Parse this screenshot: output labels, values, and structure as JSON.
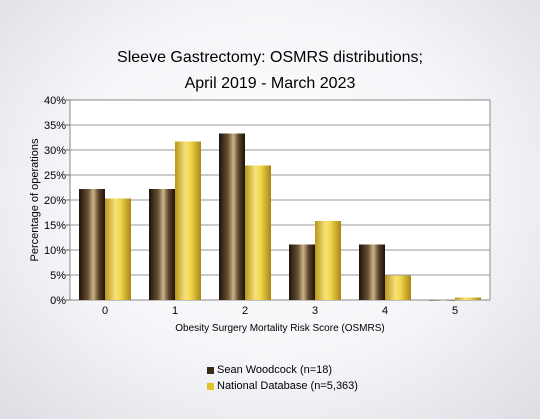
{
  "chart_data": {
    "type": "bar",
    "title": "Sleeve Gastrectomy: OSMRS distributions;",
    "subtitle": "April 2019 - March 2023",
    "xlabel": "Obesity Surgery Mortality Risk Score (OSMRS)",
    "ylabel": "Percentage of operations",
    "categories": [
      "0",
      "1",
      "2",
      "3",
      "4",
      "5"
    ],
    "ylim": [
      0,
      40
    ],
    "yticks": [
      "0%",
      "5%",
      "10%",
      "15%",
      "20%",
      "25%",
      "30%",
      "35%",
      "40%"
    ],
    "grid": true,
    "legend_position": "bottom",
    "series": [
      {
        "name": "Sean Woodcock (n=18)",
        "color": "#3a2a1a",
        "values": [
          22.2,
          22.2,
          33.3,
          11.1,
          11.1,
          0.0
        ]
      },
      {
        "name": "National Database (n=5,363)",
        "color": "#e2c22a",
        "values": [
          20.3,
          31.7,
          26.9,
          15.8,
          4.9,
          0.5
        ]
      }
    ]
  }
}
